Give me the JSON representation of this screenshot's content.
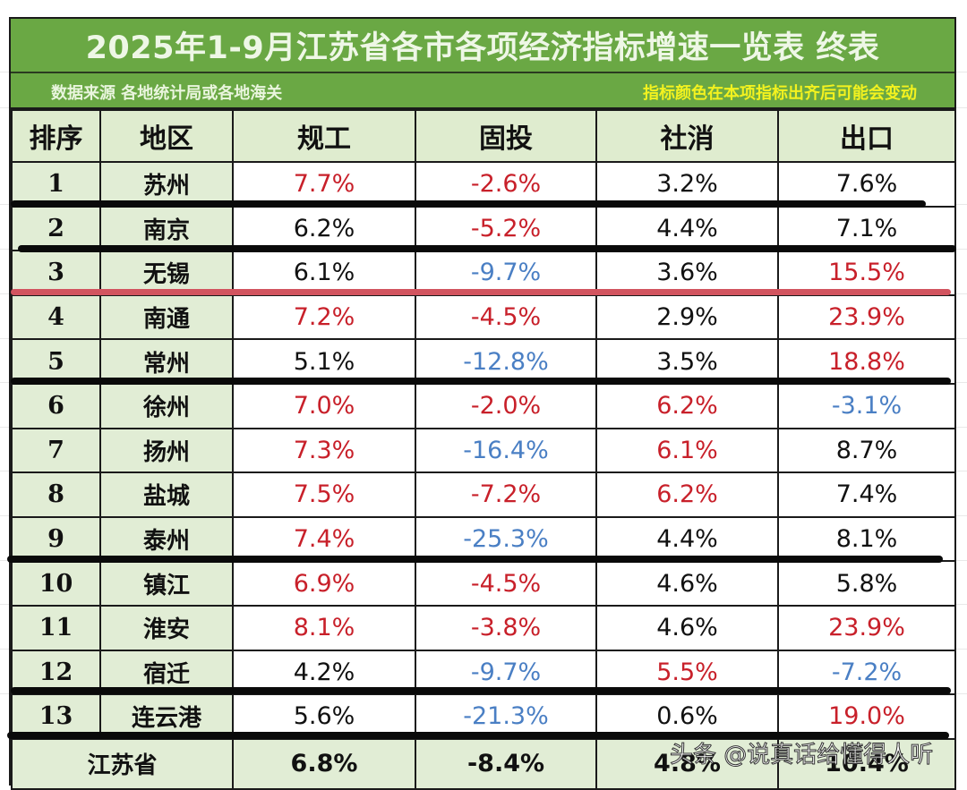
{
  "title": "2025年1-9月江苏省各市各项经济指标增速一览表 终表",
  "subtitle_left": "数据来源 各地统计局或各地海关",
  "subtitle_right": "指标颜色在本项指标出齐后可能会变动",
  "colors": {
    "header_green": "#6aa844",
    "label_bg": "#e1edd5",
    "highlight_red": "#c8202a",
    "highlight_blue": "#4a7fc4",
    "note_yellow": "#f3f21f"
  },
  "columns": [
    "排序",
    "地区",
    "规工",
    "固投",
    "社消",
    "出口"
  ],
  "rows": [
    {
      "rank": "1",
      "region": "苏州",
      "c1": "7.7%",
      "c1c": "red",
      "c2": "-2.6%",
      "c2c": "red",
      "c3": "3.2%",
      "c3c": "black",
      "c4": "7.6%",
      "c4c": "black"
    },
    {
      "rank": "2",
      "region": "南京",
      "c1": "6.2%",
      "c1c": "black",
      "c2": "-5.2%",
      "c2c": "red",
      "c3": "4.4%",
      "c3c": "black",
      "c4": "7.1%",
      "c4c": "black"
    },
    {
      "rank": "3",
      "region": "无锡",
      "c1": "6.1%",
      "c1c": "black",
      "c2": "-9.7%",
      "c2c": "blue",
      "c3": "3.6%",
      "c3c": "black",
      "c4": "15.5%",
      "c4c": "red"
    },
    {
      "rank": "4",
      "region": "南通",
      "c1": "7.2%",
      "c1c": "red",
      "c2": "-4.5%",
      "c2c": "red",
      "c3": "2.9%",
      "c3c": "black",
      "c4": "23.9%",
      "c4c": "red"
    },
    {
      "rank": "5",
      "region": "常州",
      "c1": "5.1%",
      "c1c": "black",
      "c2": "-12.8%",
      "c2c": "blue",
      "c3": "3.5%",
      "c3c": "black",
      "c4": "18.8%",
      "c4c": "red"
    },
    {
      "rank": "6",
      "region": "徐州",
      "c1": "7.0%",
      "c1c": "red",
      "c2": "-2.0%",
      "c2c": "red",
      "c3": "6.2%",
      "c3c": "red",
      "c4": "-3.1%",
      "c4c": "blue"
    },
    {
      "rank": "7",
      "region": "扬州",
      "c1": "7.3%",
      "c1c": "red",
      "c2": "-16.4%",
      "c2c": "blue",
      "c3": "6.1%",
      "c3c": "red",
      "c4": "8.7%",
      "c4c": "black"
    },
    {
      "rank": "8",
      "region": "盐城",
      "c1": "7.5%",
      "c1c": "red",
      "c2": "-7.2%",
      "c2c": "red",
      "c3": "6.2%",
      "c3c": "red",
      "c4": "7.4%",
      "c4c": "black"
    },
    {
      "rank": "9",
      "region": "泰州",
      "c1": "7.4%",
      "c1c": "red",
      "c2": "-25.3%",
      "c2c": "blue",
      "c3": "4.4%",
      "c3c": "black",
      "c4": "8.1%",
      "c4c": "black"
    },
    {
      "rank": "10",
      "region": "镇江",
      "c1": "6.9%",
      "c1c": "red",
      "c2": "-4.5%",
      "c2c": "red",
      "c3": "4.6%",
      "c3c": "black",
      "c4": "5.8%",
      "c4c": "black"
    },
    {
      "rank": "11",
      "region": "淮安",
      "c1": "8.1%",
      "c1c": "red",
      "c2": "-3.8%",
      "c2c": "red",
      "c3": "4.6%",
      "c3c": "black",
      "c4": "23.9%",
      "c4c": "red"
    },
    {
      "rank": "12",
      "region": "宿迁",
      "c1": "4.2%",
      "c1c": "black",
      "c2": "-9.7%",
      "c2c": "blue",
      "c3": "5.5%",
      "c3c": "red",
      "c4": "-7.2%",
      "c4c": "blue"
    },
    {
      "rank": "13",
      "region": "连云港",
      "c1": "5.6%",
      "c1c": "black",
      "c2": "-21.3%",
      "c2c": "blue",
      "c3": "0.6%",
      "c3c": "black",
      "c4": "19.0%",
      "c4c": "red"
    }
  ],
  "total": {
    "label": "江苏省",
    "c1": "6.8%",
    "c2": "-8.4%",
    "c3": "4.8%",
    "c4": "10.4%"
  },
  "watermark": "头条 @说真话给懂得人听",
  "chart_data": {
    "type": "table",
    "title": "2025年1-9月江苏省各市各项经济指标增速一览表 终表",
    "columns": [
      "排序",
      "地区",
      "规工",
      "固投",
      "社消",
      "出口"
    ],
    "rows": [
      [
        1,
        "苏州",
        7.7,
        -2.6,
        3.2,
        7.6
      ],
      [
        2,
        "南京",
        6.2,
        -5.2,
        4.4,
        7.1
      ],
      [
        3,
        "无锡",
        6.1,
        -9.7,
        3.6,
        15.5
      ],
      [
        4,
        "南通",
        7.2,
        -4.5,
        2.9,
        23.9
      ],
      [
        5,
        "常州",
        5.1,
        -12.8,
        3.5,
        18.8
      ],
      [
        6,
        "徐州",
        7.0,
        -2.0,
        6.2,
        -3.1
      ],
      [
        7,
        "扬州",
        7.3,
        -16.4,
        6.1,
        8.7
      ],
      [
        8,
        "盐城",
        7.5,
        -7.2,
        6.2,
        7.4
      ],
      [
        9,
        "泰州",
        7.4,
        -25.3,
        4.4,
        8.1
      ],
      [
        10,
        "镇江",
        6.9,
        -4.5,
        4.6,
        5.8
      ],
      [
        11,
        "淮安",
        8.1,
        -3.8,
        4.6,
        23.9
      ],
      [
        12,
        "宿迁",
        4.2,
        -9.7,
        5.5,
        -7.2
      ],
      [
        13,
        "连云港",
        5.6,
        -21.3,
        0.6,
        19.0
      ],
      [
        "",
        "江苏省",
        6.8,
        -8.4,
        4.8,
        10.4
      ]
    ],
    "units": "%"
  }
}
